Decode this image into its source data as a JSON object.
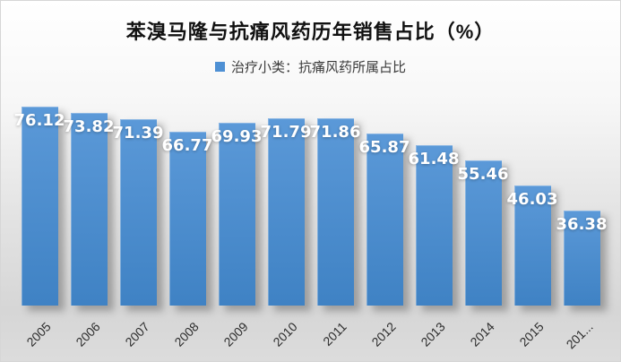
{
  "chart_data": {
    "type": "bar",
    "title": "苯溴马隆与抗痛风药历年销售占比（%）",
    "legend": "治疗小类：抗痛风药所属占比",
    "legend_position": "top",
    "categories": [
      "2005",
      "2006",
      "2007",
      "2008",
      "2009",
      "2010",
      "2011",
      "2012",
      "2013",
      "2014",
      "2015",
      "201..."
    ],
    "values": [
      76.12,
      73.82,
      71.39,
      66.77,
      69.93,
      71.79,
      71.86,
      65.87,
      61.48,
      55.46,
      46.03,
      36.38
    ],
    "xlabel": "",
    "ylabel": "",
    "ylim": [
      0,
      80
    ],
    "grid": false,
    "data_labels": "inside-end, white bold",
    "x_tick_rotation_deg": -45,
    "colors": {
      "bar_top": "#5B99D8",
      "bar_bottom": "#3F82C4",
      "legend_marker": "#4E90D4",
      "title_text": "#111111",
      "axis_text": "#2d2d2d"
    }
  }
}
